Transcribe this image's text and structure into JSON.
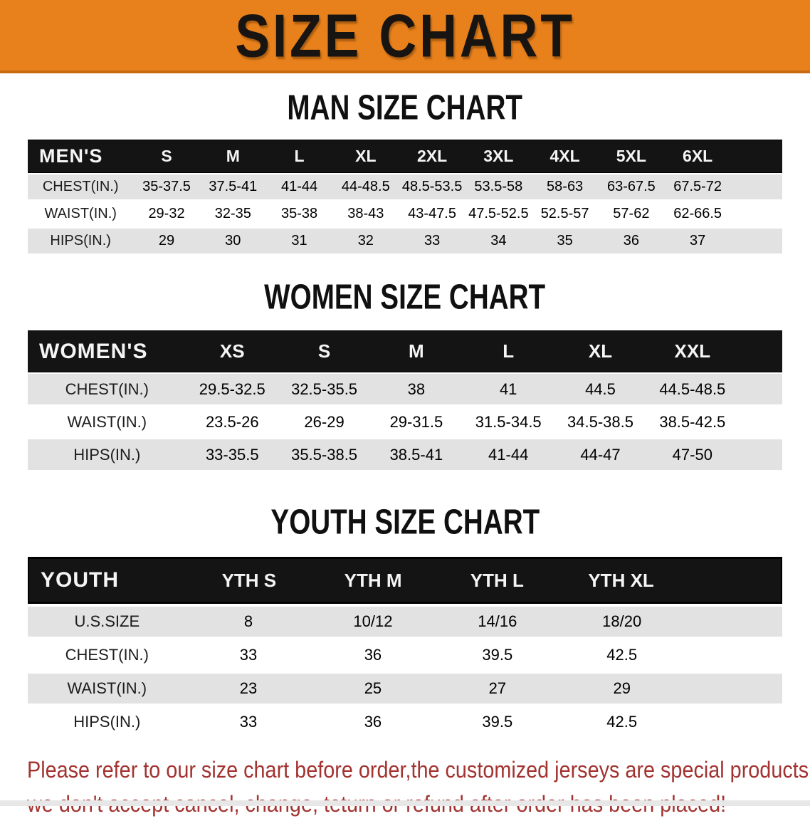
{
  "banner": {
    "title": "SIZE CHART",
    "bg_color": "#E8811B"
  },
  "colors": {
    "banner_orange": "#E8811B",
    "table_header_black": "#141414",
    "row_stripe_gray": "#E2E2E3",
    "disclaimer_red": "#A23330"
  },
  "sections": [
    {
      "heading": "MAN SIZE CHART",
      "table": {
        "header_label": "MEN'S",
        "columns": [
          "S",
          "M",
          "L",
          "XL",
          "2XL",
          "3XL",
          "4XL",
          "5XL",
          "6XL"
        ],
        "rows": [
          {
            "label": "CHEST(IN.)",
            "values": [
              "35-37.5",
              "37.5-41",
              "41-44",
              "44-48.5",
              "48.5-53.5",
              "53.5-58",
              "58-63",
              "63-67.5",
              "67.5-72"
            ]
          },
          {
            "label": "WAIST(IN.)",
            "values": [
              "29-32",
              "32-35",
              "35-38",
              "38-43",
              "43-47.5",
              "47.5-52.5",
              "52.5-57",
              "57-62",
              "62-66.5"
            ]
          },
          {
            "label": "HIPS(IN.)",
            "values": [
              "29",
              "30",
              "31",
              "32",
              "33",
              "34",
              "35",
              "36",
              "37"
            ]
          }
        ]
      }
    },
    {
      "heading": "WOMEN SIZE CHART",
      "table": {
        "header_label": "WOMEN'S",
        "columns": [
          "XS",
          "S",
          "M",
          "L",
          "XL",
          "XXL"
        ],
        "rows": [
          {
            "label": "CHEST(IN.)",
            "values": [
              "29.5-32.5",
              "32.5-35.5",
              "38",
              "41",
              "44.5",
              "44.5-48.5"
            ]
          },
          {
            "label": "WAIST(IN.)",
            "values": [
              "23.5-26",
              "26-29",
              "29-31.5",
              "31.5-34.5",
              "34.5-38.5",
              "38.5-42.5"
            ]
          },
          {
            "label": "HIPS(IN.)",
            "values": [
              "33-35.5",
              "35.5-38.5",
              "38.5-41",
              "41-44",
              "44-47",
              "47-50"
            ]
          }
        ]
      }
    },
    {
      "heading": "YOUTH SIZE CHART",
      "table": {
        "header_label": "YOUTH",
        "columns": [
          "YTH S",
          "YTH M",
          "YTH L",
          "YTH XL"
        ],
        "rows": [
          {
            "label": "U.S.SIZE",
            "values": [
              "8",
              "10/12",
              "14/16",
              "18/20"
            ]
          },
          {
            "label": "CHEST(IN.)",
            "values": [
              "33",
              "36",
              "39.5",
              "42.5"
            ]
          },
          {
            "label": "WAIST(IN.)",
            "values": [
              "23",
              "25",
              "27",
              "29"
            ]
          },
          {
            "label": "HIPS(IN.)",
            "values": [
              "33",
              "36",
              "39.5",
              "42.5"
            ]
          }
        ]
      }
    }
  ],
  "disclaimer": {
    "line1": "Please refer to our size chart before order,the customized jerseys are special products,",
    "line2": "we don't accept cancel, change, teturn or refund after order has been placed!"
  }
}
